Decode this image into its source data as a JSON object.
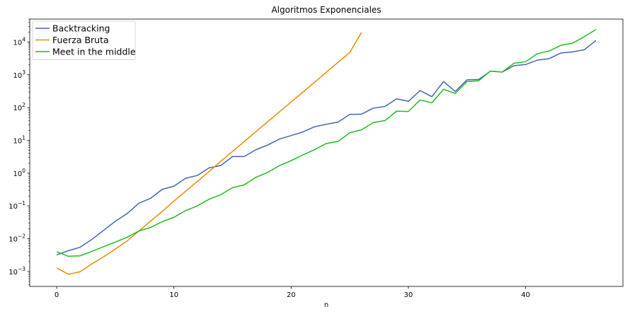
{
  "chart_data": {
    "type": "line",
    "title": "Algoritmos Exponenciales",
    "xlabel": "n",
    "ylabel": "",
    "yscale": "log",
    "xlim": [
      -2.3,
      48.3
    ],
    "ylim": [
      0.00035,
      50000
    ],
    "xticks": [
      0,
      10,
      20,
      30,
      40
    ],
    "yticks": [
      {
        "value": 0.001,
        "base": "10",
        "exp": "−3"
      },
      {
        "value": 0.01,
        "base": "10",
        "exp": "−2"
      },
      {
        "value": 0.1,
        "base": "10",
        "exp": "−1"
      },
      {
        "value": 1,
        "base": "10",
        "exp": "0"
      },
      {
        "value": 10,
        "base": "10",
        "exp": "1"
      },
      {
        "value": 100,
        "base": "10",
        "exp": "2"
      },
      {
        "value": 1000,
        "base": "10",
        "exp": "3"
      },
      {
        "value": 10000,
        "base": "10",
        "exp": "4"
      }
    ],
    "grid": false,
    "legend_position": "top-left",
    "series": [
      {
        "name": "Backtracking",
        "color": "#4366b8",
        "x": [
          0,
          1,
          2,
          3,
          4,
          5,
          6,
          7,
          8,
          9,
          10,
          11,
          12,
          13,
          14,
          15,
          16,
          17,
          18,
          19,
          20,
          21,
          22,
          23,
          24,
          25,
          26,
          27,
          28,
          29,
          30,
          31,
          32,
          33,
          34,
          35,
          36,
          37,
          38,
          39,
          40,
          41,
          42,
          43,
          44,
          45,
          46
        ],
        "y": [
          0.0032,
          0.0043,
          0.0055,
          0.0095,
          0.018,
          0.034,
          0.058,
          0.12,
          0.17,
          0.32,
          0.4,
          0.7,
          0.85,
          1.45,
          1.7,
          3.2,
          3.2,
          5.2,
          7.2,
          11,
          14,
          18,
          26,
          31,
          36,
          62,
          63,
          96,
          108,
          185,
          155,
          330,
          215,
          620,
          310,
          700,
          720,
          1290,
          1210,
          1900,
          2060,
          2800,
          3100,
          4600,
          5000,
          5800,
          11100
        ]
      },
      {
        "name": "Fuerza Bruta",
        "color": "#f08a00",
        "x": [
          0,
          1,
          2,
          3,
          4,
          5,
          6,
          7,
          8,
          9,
          10,
          11,
          12,
          13,
          14,
          15,
          16,
          17,
          18,
          19,
          20,
          21,
          22,
          23,
          24,
          25,
          26
        ],
        "y": [
          0.00128,
          0.00082,
          0.00098,
          0.0017,
          0.0028,
          0.0048,
          0.0085,
          0.017,
          0.034,
          0.068,
          0.14,
          0.28,
          0.56,
          1.12,
          2.3,
          4.6,
          9.2,
          18.5,
          37,
          74,
          148,
          296,
          592,
          1200,
          2400,
          4800,
          19500
        ]
      },
      {
        "name": "Meet in the middle",
        "color": "#1fbc1f",
        "x": [
          0,
          1,
          2,
          3,
          4,
          5,
          6,
          7,
          8,
          9,
          10,
          11,
          12,
          13,
          14,
          15,
          16,
          17,
          18,
          19,
          20,
          21,
          22,
          23,
          24,
          25,
          26,
          27,
          28,
          29,
          30,
          31,
          32,
          33,
          34,
          35,
          36,
          37,
          38,
          39,
          40,
          41,
          42,
          43,
          44,
          45,
          46
        ],
        "y": [
          0.004,
          0.0029,
          0.003,
          0.0041,
          0.0057,
          0.0079,
          0.011,
          0.017,
          0.022,
          0.033,
          0.045,
          0.072,
          0.1,
          0.16,
          0.22,
          0.36,
          0.44,
          0.75,
          1.05,
          1.7,
          2.4,
          3.6,
          5.2,
          8,
          9.3,
          17,
          21,
          35,
          40,
          78,
          76,
          170,
          140,
          360,
          270,
          620,
          660,
          1300,
          1210,
          2250,
          2500,
          4400,
          5300,
          7900,
          9200,
          14500,
          24000
        ]
      }
    ]
  }
}
